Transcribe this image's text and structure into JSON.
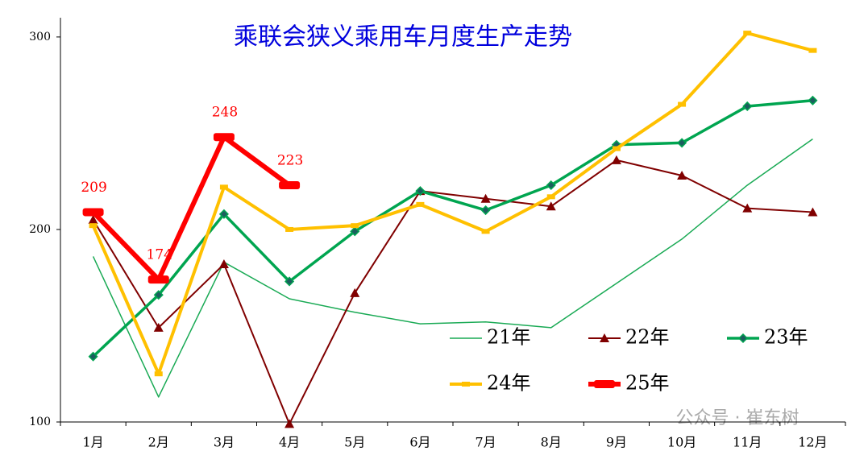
{
  "chart_data": {
    "type": "line",
    "title": "乘联会狭义乘用车月度生产走势",
    "categories": [
      "1月",
      "2月",
      "3月",
      "4月",
      "5月",
      "6月",
      "7月",
      "8月",
      "9月",
      "10月",
      "11月",
      "12月"
    ],
    "ylim": [
      100,
      310
    ],
    "yticks": [
      100,
      200,
      300
    ],
    "legend": "inside-bottom-right",
    "annotation": "公众号 · 崔东树",
    "series": [
      {
        "name": "21年",
        "color": "#1aaa55",
        "marker": "none",
        "width": 1.5,
        "values": [
          186,
          113,
          183,
          164,
          157,
          151,
          152,
          149,
          172,
          195,
          223,
          247
        ]
      },
      {
        "name": "22年",
        "color": "#800000",
        "marker": "triangle",
        "width": 2,
        "values": [
          205,
          149,
          182,
          99,
          167,
          220,
          216,
          212,
          236,
          228,
          211,
          209
        ]
      },
      {
        "name": "23年",
        "color": "#00a550",
        "marker": "diamond",
        "width": 3.5,
        "values": [
          134,
          166,
          208,
          173,
          199,
          220,
          210,
          223,
          244,
          245,
          264,
          267
        ]
      },
      {
        "name": "24年",
        "color": "#ffc000",
        "marker": "square",
        "width": 4,
        "values": [
          202,
          125,
          222,
          200,
          202,
          213,
          199,
          217,
          242,
          265,
          302,
          293
        ]
      },
      {
        "name": "25年",
        "color": "#ff0000",
        "marker": "bar",
        "width": 6,
        "values": [
          209,
          174,
          248,
          223,
          null,
          null,
          null,
          null,
          null,
          null,
          null,
          null
        ],
        "show_labels": true
      }
    ]
  }
}
